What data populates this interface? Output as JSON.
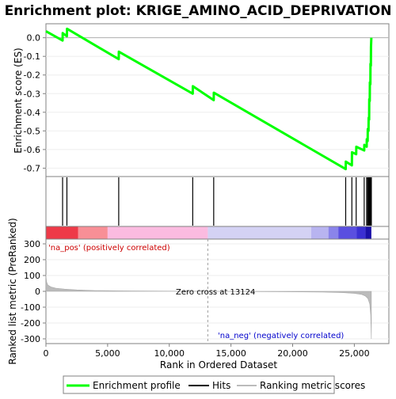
{
  "chart_data": {
    "type": "line",
    "title": "Enrichment plot: KRIGE_AMINO_ACID_DEPRIVATION",
    "xlabel": "Rank in Ordered Dataset",
    "xlim": [
      0,
      27800
    ],
    "x_ticks": [
      {
        "value": 0,
        "label": "0"
      },
      {
        "value": 5000,
        "label": "5,000"
      },
      {
        "value": 10000,
        "label": "10,000"
      },
      {
        "value": 15000,
        "label": "15,000"
      },
      {
        "value": 20000,
        "label": "20,000"
      },
      {
        "value": 25000,
        "label": "25,000"
      }
    ],
    "es_panel": {
      "ylabel": "Enrichment score (ES)",
      "ylim": [
        -0.745,
        0.075
      ],
      "y_ticks": [
        {
          "value": 0.0,
          "label": "0.0"
        },
        {
          "value": -0.1,
          "label": "-0.1"
        },
        {
          "value": -0.2,
          "label": "-0.2"
        },
        {
          "value": -0.3,
          "label": "-0.3"
        },
        {
          "value": -0.4,
          "label": "-0.4"
        },
        {
          "value": -0.5,
          "label": "-0.5"
        },
        {
          "value": -0.6,
          "label": "-0.6"
        },
        {
          "value": -0.7,
          "label": "-0.7"
        }
      ],
      "series": [
        {
          "name": "Enrichment profile",
          "color": "#00ff00",
          "x": [
            0,
            1350,
            1360,
            1700,
            1710,
            5900,
            5910,
            11900,
            11910,
            13600,
            13610,
            24300,
            24310,
            24800,
            24810,
            25150,
            25160,
            25800,
            25810,
            26000,
            26010,
            26080,
            26090,
            26150,
            26160,
            26200,
            26210,
            26250,
            26260,
            26300,
            26310,
            26340,
            26350,
            26380
          ],
          "values": [
            0.035,
            -0.015,
            0.025,
            0.008,
            0.048,
            -0.115,
            -0.075,
            -0.3,
            -0.26,
            -0.335,
            -0.295,
            -0.705,
            -0.665,
            -0.685,
            -0.615,
            -0.625,
            -0.585,
            -0.605,
            -0.575,
            -0.585,
            -0.545,
            -0.555,
            -0.49,
            -0.5,
            -0.43,
            -0.44,
            -0.33,
            -0.34,
            -0.24,
            -0.25,
            -0.14,
            -0.15,
            -0.05,
            0.0
          ]
        }
      ]
    },
    "hits": {
      "name": "Hits",
      "x": [
        1350,
        1700,
        5900,
        11900,
        13600,
        24300,
        24800,
        25150,
        25800,
        26000,
        26080,
        26150,
        26200,
        26250,
        26300,
        26340,
        26380
      ]
    },
    "heat_bar": [
      {
        "from": 0,
        "to": 2600,
        "color": "#ee3a48"
      },
      {
        "from": 2600,
        "to": 5000,
        "color": "#f88f96"
      },
      {
        "from": 5000,
        "to": 13124,
        "color": "#fbbbe0"
      },
      {
        "from": 13124,
        "to": 21500,
        "color": "#d4d2f4"
      },
      {
        "from": 21500,
        "to": 22900,
        "color": "#b8b4f0"
      },
      {
        "from": 22900,
        "to": 23700,
        "color": "#8a84ea"
      },
      {
        "from": 23700,
        "to": 25200,
        "color": "#5a4fe0"
      },
      {
        "from": 25200,
        "to": 25900,
        "color": "#3a2fd2"
      },
      {
        "from": 25900,
        "to": 26380,
        "color": "#1a10a8"
      }
    ],
    "rank_panel": {
      "ylabel": "Ranked list metric (PreRanked)",
      "ylim": [
        -330,
        330
      ],
      "y_ticks": [
        {
          "value": 300,
          "label": "300"
        },
        {
          "value": 200,
          "label": "200"
        },
        {
          "value": 100,
          "label": "100"
        },
        {
          "value": 0,
          "label": "0"
        },
        {
          "value": -100,
          "label": "-100"
        },
        {
          "value": -200,
          "label": "-200"
        },
        {
          "value": -300,
          "label": "-300"
        }
      ],
      "series": [
        {
          "name": "Ranking metric scores",
          "color": "#bbbbbb",
          "x": [
            0,
            50,
            150,
            400,
            800,
            1500,
            2500,
            4000,
            6000,
            9000,
            13124,
            17000,
            20000,
            22500,
            24000,
            25000,
            25600,
            25900,
            26100,
            26250,
            26330,
            26380
          ],
          "values": [
            100,
            60,
            40,
            28,
            20,
            14,
            9,
            5,
            3,
            1.5,
            0,
            -1.5,
            -3,
            -5,
            -8,
            -13,
            -20,
            -30,
            -45,
            -80,
            -150,
            -300
          ]
        }
      ],
      "zero_cross": 13124
    },
    "annotations": {
      "pos_label": "'na_pos' (positively correlated)",
      "neg_label": "'na_neg' (negatively correlated)",
      "zero_cross_label": "Zero cross at 13124"
    },
    "legend": {
      "placement": "bottom",
      "items": [
        {
          "label": "Enrichment profile",
          "color": "#00ff00"
        },
        {
          "label": "Hits",
          "color": "#000000"
        },
        {
          "label": "Ranking metric scores",
          "color": "#bbbbbb"
        }
      ]
    },
    "colors": {
      "pos_text": "#cc0000",
      "neg_text": "#0000cc"
    }
  }
}
